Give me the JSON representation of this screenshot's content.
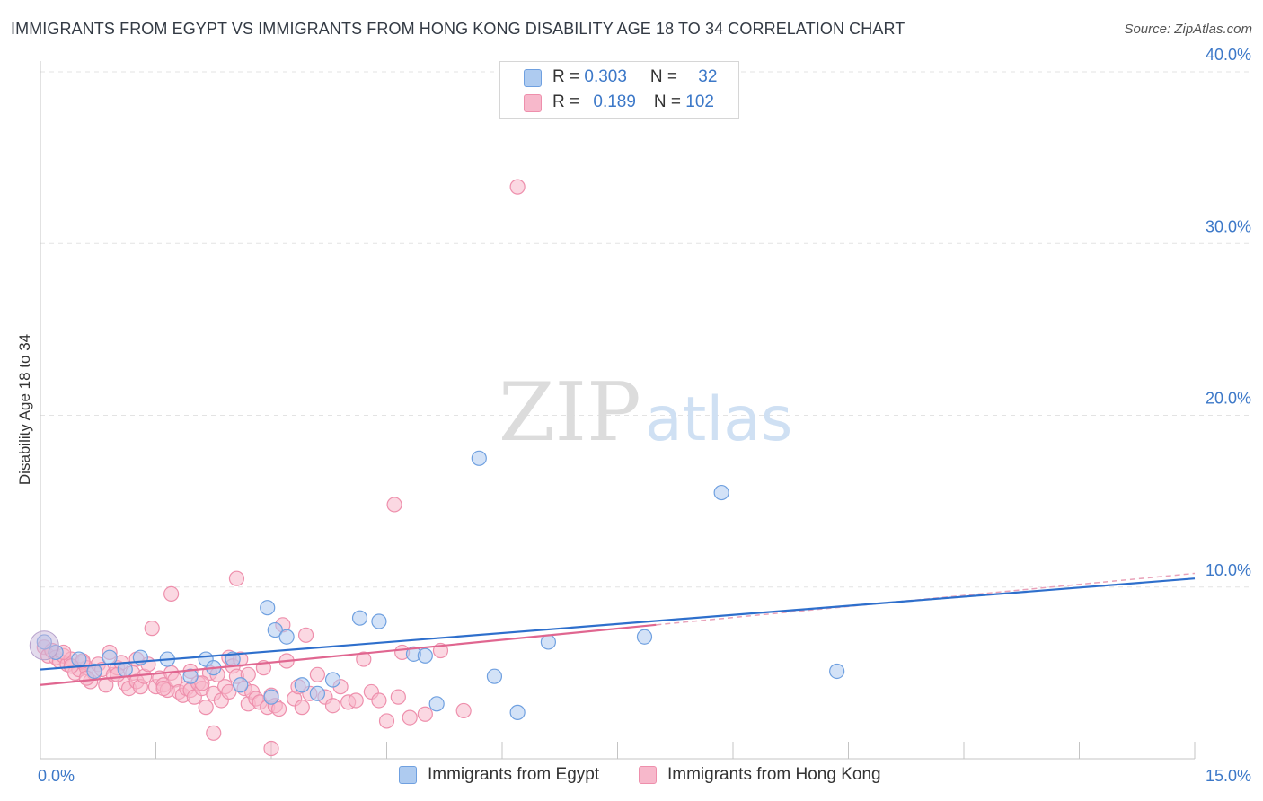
{
  "header": {
    "title": "IMMIGRANTS FROM EGYPT VS IMMIGRANTS FROM HONG KONG DISABILITY AGE 18 TO 34 CORRELATION CHART",
    "source": "Source: ZipAtlas.com"
  },
  "watermark": {
    "zip": "ZIP",
    "atlas": "atlas"
  },
  "legend_top": {
    "rows": [
      {
        "r_label": "R = ",
        "r_value": "0.303",
        "n_label": "N = ",
        "n_value": "32",
        "color": "#aecbf0"
      },
      {
        "r_label": "R = ",
        "r_value": "0.189",
        "n_label": "N = ",
        "n_value": "102",
        "color": "#f7b8cb"
      }
    ]
  },
  "legend_bottom": {
    "items": [
      {
        "label": "Immigrants from Egypt",
        "color": "#aecbf0"
      },
      {
        "label": "Immigrants from Hong Kong",
        "color": "#f7b8cb"
      }
    ]
  },
  "chart_data": {
    "type": "scatter",
    "title": "IMMIGRANTS FROM EGYPT VS IMMIGRANTS FROM HONG KONG DISABILITY AGE 18 TO 34 CORRELATION CHART",
    "xlabel": "",
    "ylabel": "Disability Age 18 to 34",
    "xlim": [
      0,
      15
    ],
    "ylim": [
      0,
      40
    ],
    "x_tick_labels": [
      "0.0%",
      "15.0%"
    ],
    "y_ticks": [
      10,
      20,
      30,
      40
    ],
    "y_tick_labels": [
      "10.0%",
      "20.0%",
      "30.0%",
      "40.0%"
    ],
    "grid": true,
    "series": [
      {
        "name": "Immigrants from Egypt",
        "color": "#6fa0e0",
        "fill": "#aecbf0",
        "line_color": "#2e6fcc",
        "trend": {
          "x0": 0,
          "y0": 5.2,
          "x1": 15,
          "y1": 10.5
        },
        "points": [
          [
            0.05,
            6.8
          ],
          [
            0.2,
            6.2
          ],
          [
            0.5,
            5.8
          ],
          [
            0.7,
            5.1
          ],
          [
            0.9,
            5.9
          ],
          [
            1.3,
            5.9
          ],
          [
            1.65,
            5.8
          ],
          [
            1.95,
            4.8
          ],
          [
            2.15,
            5.8
          ],
          [
            2.25,
            5.3
          ],
          [
            2.5,
            5.8
          ],
          [
            2.6,
            4.3
          ],
          [
            2.95,
            8.8
          ],
          [
            3.05,
            7.5
          ],
          [
            3.2,
            7.1
          ],
          [
            3.4,
            4.3
          ],
          [
            3.6,
            3.8
          ],
          [
            3.8,
            4.6
          ],
          [
            4.15,
            8.2
          ],
          [
            4.4,
            8.0
          ],
          [
            4.85,
            6.1
          ],
          [
            5.0,
            6.0
          ],
          [
            5.15,
            3.2
          ],
          [
            5.7,
            17.5
          ],
          [
            5.9,
            4.8
          ],
          [
            6.2,
            2.7
          ],
          [
            6.6,
            6.8
          ],
          [
            7.85,
            7.1
          ],
          [
            8.85,
            15.5
          ],
          [
            10.35,
            5.1
          ],
          [
            1.1,
            5.2
          ],
          [
            3.0,
            3.6
          ]
        ]
      },
      {
        "name": "Immigrants from Hong Kong",
        "color": "#ee8fac",
        "fill": "#f7b8cb",
        "line_color": "#e06690",
        "trend": {
          "x0": 0,
          "y0": 4.3,
          "x1": 8.0,
          "y1": 7.8
        },
        "trend_dashed_to": {
          "x": 15,
          "y": 10.8
        },
        "points": [
          [
            0.05,
            6.5
          ],
          [
            0.1,
            6.0
          ],
          [
            0.15,
            6.3
          ],
          [
            0.2,
            5.9
          ],
          [
            0.25,
            5.7
          ],
          [
            0.3,
            6.0
          ],
          [
            0.35,
            5.5
          ],
          [
            0.4,
            5.8
          ],
          [
            0.45,
            5.0
          ],
          [
            0.5,
            5.2
          ],
          [
            0.55,
            5.6
          ],
          [
            0.6,
            5.3
          ],
          [
            0.65,
            4.5
          ],
          [
            0.7,
            5.0
          ],
          [
            0.75,
            5.5
          ],
          [
            0.8,
            5.2
          ],
          [
            0.85,
            4.3
          ],
          [
            0.9,
            6.2
          ],
          [
            0.95,
            4.9
          ],
          [
            1.0,
            5.3
          ],
          [
            1.05,
            5.6
          ],
          [
            1.1,
            4.4
          ],
          [
            1.15,
            4.1
          ],
          [
            1.2,
            5.0
          ],
          [
            1.25,
            4.5
          ],
          [
            1.3,
            4.2
          ],
          [
            1.35,
            4.8
          ],
          [
            1.4,
            5.5
          ],
          [
            1.45,
            7.6
          ],
          [
            1.5,
            4.2
          ],
          [
            1.55,
            4.7
          ],
          [
            1.6,
            4.3
          ],
          [
            1.65,
            4.0
          ],
          [
            1.7,
            5.0
          ],
          [
            1.75,
            4.6
          ],
          [
            1.8,
            3.9
          ],
          [
            1.85,
            3.7
          ],
          [
            1.9,
            4.1
          ],
          [
            1.95,
            4.0
          ],
          [
            2.0,
            3.6
          ],
          [
            2.05,
            4.4
          ],
          [
            2.1,
            4.1
          ],
          [
            2.15,
            3.0
          ],
          [
            2.2,
            5.0
          ],
          [
            2.25,
            3.8
          ],
          [
            2.3,
            4.9
          ],
          [
            2.35,
            3.4
          ],
          [
            2.4,
            4.2
          ],
          [
            2.45,
            5.9
          ],
          [
            2.5,
            5.4
          ],
          [
            2.55,
            4.8
          ],
          [
            2.6,
            5.8
          ],
          [
            2.65,
            4.1
          ],
          [
            2.7,
            3.2
          ],
          [
            2.75,
            3.9
          ],
          [
            2.8,
            3.5
          ],
          [
            2.85,
            3.3
          ],
          [
            2.9,
            5.3
          ],
          [
            2.95,
            3.0
          ],
          [
            3.0,
            3.7
          ],
          [
            3.05,
            3.1
          ],
          [
            3.1,
            2.9
          ],
          [
            3.15,
            7.8
          ],
          [
            3.2,
            5.7
          ],
          [
            3.3,
            3.5
          ],
          [
            3.4,
            3.0
          ],
          [
            3.5,
            3.8
          ],
          [
            3.6,
            4.9
          ],
          [
            3.7,
            3.6
          ],
          [
            3.8,
            3.1
          ],
          [
            3.9,
            4.2
          ],
          [
            4.0,
            3.3
          ],
          [
            4.1,
            3.4
          ],
          [
            4.2,
            5.8
          ],
          [
            4.3,
            3.9
          ],
          [
            4.4,
            3.4
          ],
          [
            4.5,
            2.2
          ],
          [
            4.6,
            14.8
          ],
          [
            4.65,
            3.6
          ],
          [
            4.7,
            6.2
          ],
          [
            4.8,
            2.4
          ],
          [
            5.0,
            2.6
          ],
          [
            5.2,
            6.3
          ],
          [
            5.5,
            2.8
          ],
          [
            6.2,
            33.3
          ],
          [
            1.7,
            9.6
          ],
          [
            2.25,
            1.5
          ],
          [
            2.55,
            10.5
          ],
          [
            2.45,
            3.9
          ],
          [
            3.45,
            7.2
          ],
          [
            3.0,
            0.6
          ],
          [
            0.55,
            5.7
          ],
          [
            0.3,
            6.2
          ],
          [
            1.25,
            5.8
          ],
          [
            1.95,
            5.1
          ],
          [
            2.7,
            4.9
          ],
          [
            3.35,
            4.2
          ],
          [
            1.0,
            4.9
          ],
          [
            1.6,
            4.1
          ],
          [
            0.4,
            5.4
          ],
          [
            0.6,
            4.7
          ],
          [
            2.1,
            4.4
          ]
        ]
      }
    ]
  }
}
